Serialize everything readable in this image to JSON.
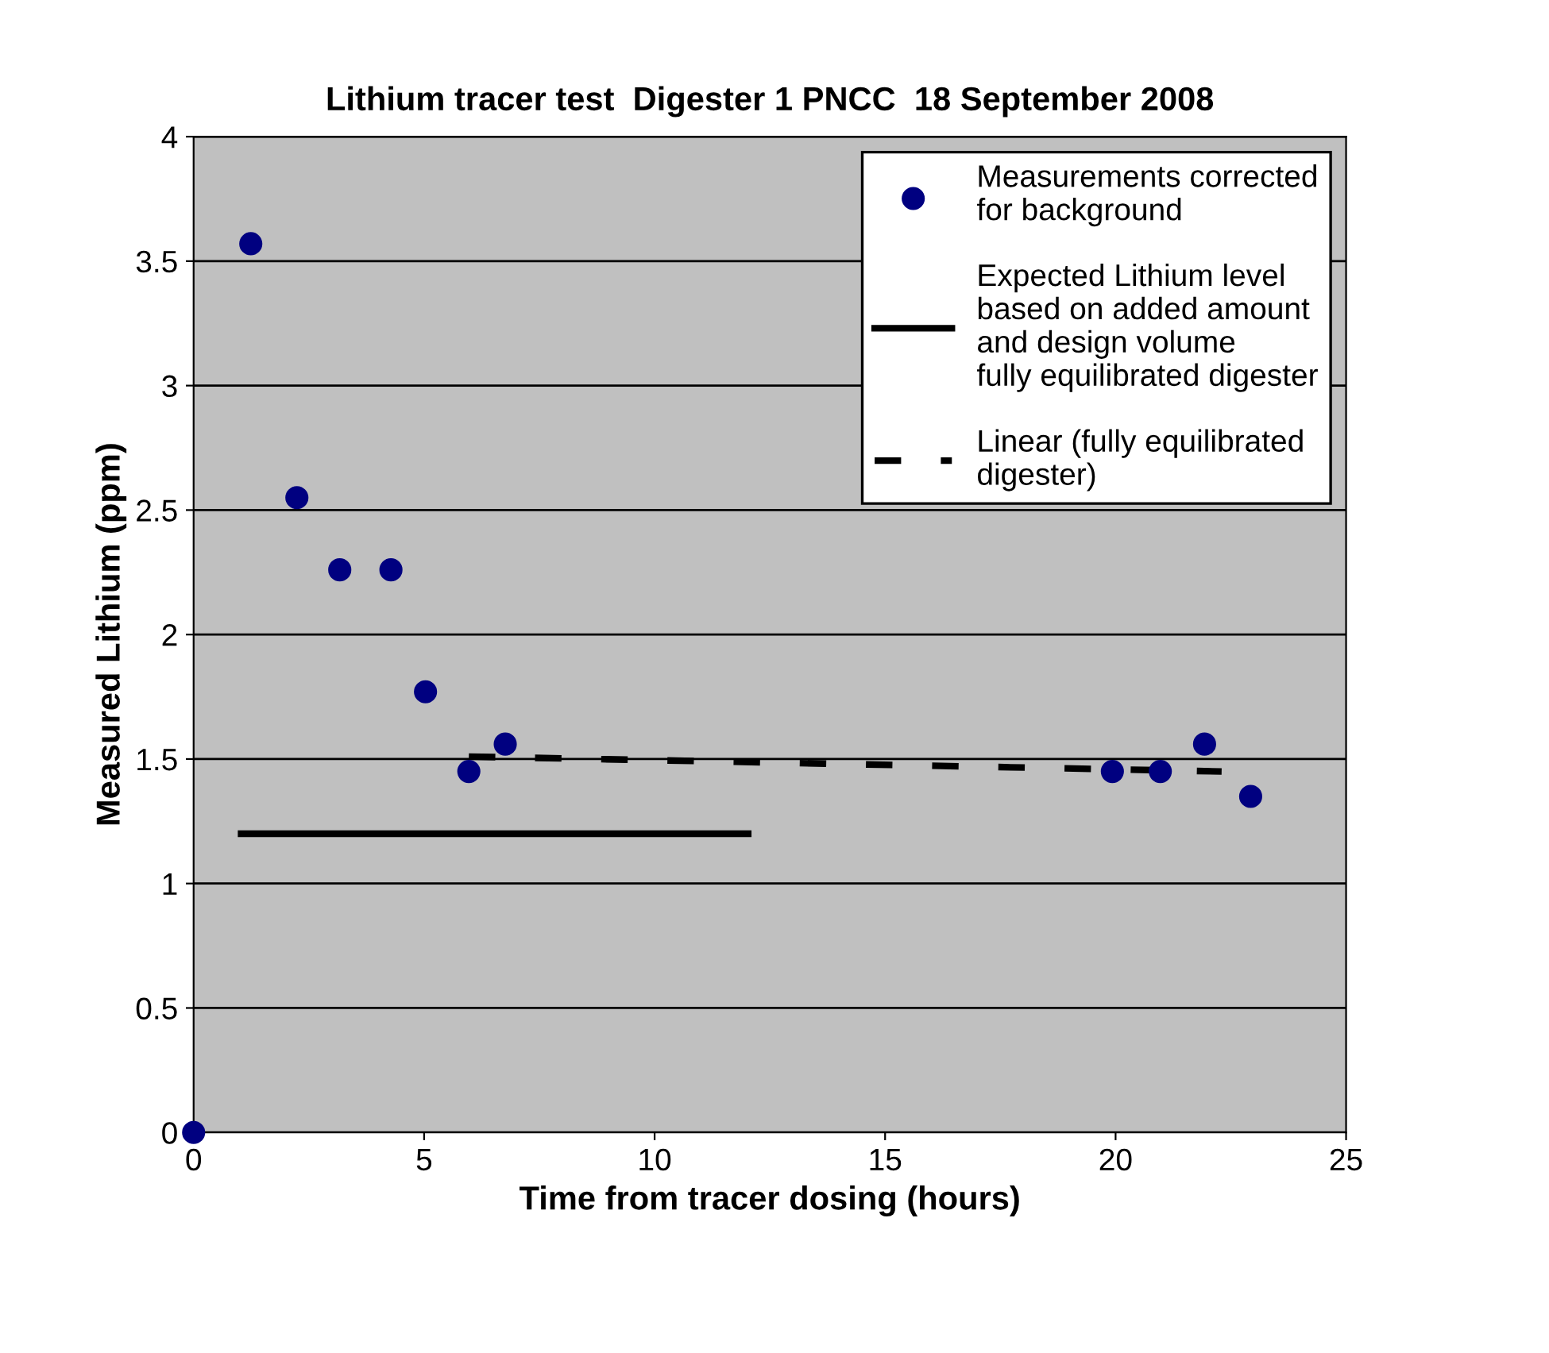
{
  "chart_data": {
    "type": "scatter",
    "title": "Lithium tracer test  Digester 1 PNCC  18 September 2008",
    "xlabel": "Time from tracer dosing (hours)",
    "ylabel": "Measured Lithium (ppm)",
    "xlim": [
      0,
      25
    ],
    "xticks": [
      0,
      5,
      10,
      15,
      20,
      25
    ],
    "ylim": [
      0,
      4
    ],
    "yticks": [
      0,
      0.5,
      1,
      1.5,
      2,
      2.5,
      3,
      3.5,
      4
    ],
    "grid": "y",
    "legend": "top right",
    "series": [
      {
        "name": "Measurements corrected\nfor background",
        "color": "#000080",
        "marker": "circle",
        "x": [
          0,
          1.24,
          2.24,
          3.17,
          4.28,
          5.03,
          5.97,
          6.76,
          19.93,
          20.97,
          21.93,
          22.93
        ],
        "values": [
          0,
          3.57,
          2.55,
          2.26,
          2.26,
          1.77,
          1.45,
          1.56,
          1.45,
          1.45,
          1.56,
          1.35
        ]
      },
      {
        "type": "line",
        "name": "Expected Lithium level\nbased on added amount\nand design volume\nfully equilibrated digester",
        "color": "#000000",
        "line_style": "solid",
        "x": [
          1.03,
          12.03
        ],
        "values": [
          1.2,
          1.2
        ]
      },
      {
        "type": "line",
        "name": "Linear (fully equilibrated\ndigester)",
        "color": "#000000",
        "line_style": "dashed",
        "x": [
          5.97,
          22.3
        ],
        "values": [
          1.51,
          1.45
        ]
      }
    ]
  }
}
